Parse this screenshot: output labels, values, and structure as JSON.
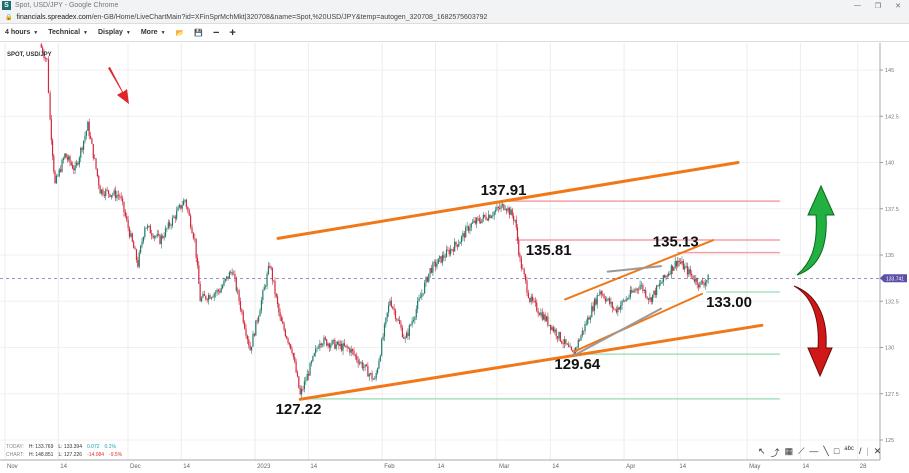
{
  "window": {
    "title": "Spot, USD/JPY - Google Chrome",
    "logo": "S",
    "url_domain": "financials.spreadex.com",
    "url_path": "/en-GB/Home/LiveChartMain?id=XFinSprMchMkt|320708&name=Spot,%20USD/JPY&temp=autogen_320708_1682575603792"
  },
  "toolbar": {
    "interval": "4 hours",
    "technical": "Technical",
    "display": "Display",
    "more": "More"
  },
  "symbol": "SPOT, USD/JPY",
  "current_price": "133.741",
  "stats": {
    "today_label": "TODAY:",
    "today_high": "H: 133.769",
    "today_low": "L: 133.394",
    "today_change": "0.072",
    "today_pct": "0.1%",
    "chart_label": "CHART:",
    "chart_high": "H: 148.851",
    "chart_low": "L: 127.226",
    "chart_change": "-14.084",
    "chart_pct": "-9.5%"
  },
  "colors": {
    "up": "#1f7a6a",
    "down": "#d0283c",
    "trend": "#f07818",
    "resistance": "#f4a0a8",
    "support": "#a8e0c0",
    "price_tag": "#5b50a8"
  },
  "chart_data": {
    "type": "candlestick",
    "ylim": [
      124.5,
      146.5
    ],
    "y_ticks": [
      "145",
      "142.5",
      "140",
      "137.5",
      "135",
      "132.5",
      "130",
      "127.5",
      "125"
    ],
    "x_ticks": [
      {
        "day": 0,
        "label": "Nov"
      },
      {
        "day": 13,
        "label": "14"
      },
      {
        "day": 30,
        "label": "Dec"
      },
      {
        "day": 43,
        "label": "14"
      },
      {
        "day": 61,
        "label": "2023"
      },
      {
        "day": 74,
        "label": "14"
      },
      {
        "day": 92,
        "label": "Feb"
      },
      {
        "day": 105,
        "label": "14"
      },
      {
        "day": 120,
        "label": "Mar"
      },
      {
        "day": 133,
        "label": "14"
      },
      {
        "day": 151,
        "label": "Apr"
      },
      {
        "day": 164,
        "label": "14"
      },
      {
        "day": 181,
        "label": "May"
      },
      {
        "day": 194,
        "label": "14"
      },
      {
        "day": 208,
        "label": "28"
      }
    ],
    "path": [
      [
        8.5,
        146.4
      ],
      [
        10.2,
        145.5
      ],
      [
        11,
        142.3
      ],
      [
        12.2,
        138.8
      ],
      [
        14.6,
        140.4
      ],
      [
        17.1,
        139.6
      ],
      [
        20.2,
        142.0
      ],
      [
        23.2,
        138.5
      ],
      [
        28,
        138.2
      ],
      [
        32.4,
        134.5
      ],
      [
        34.1,
        136.6
      ],
      [
        37.8,
        135.8
      ],
      [
        43.9,
        138.0
      ],
      [
        46.3,
        135.8
      ],
      [
        47.6,
        132.6
      ],
      [
        52.4,
        133.1
      ],
      [
        55.4,
        134.2
      ],
      [
        59.8,
        129.9
      ],
      [
        64.6,
        134.5
      ],
      [
        67.1,
        131.5
      ],
      [
        70,
        129.9
      ],
      [
        72,
        127.4
      ],
      [
        76.8,
        130.4
      ],
      [
        84.1,
        129.9
      ],
      [
        90.2,
        128.2
      ],
      [
        93.9,
        132.6
      ],
      [
        97.6,
        130.4
      ],
      [
        103.7,
        134.2
      ],
      [
        111,
        135.8
      ],
      [
        113.4,
        136.6
      ],
      [
        118.3,
        137.2
      ],
      [
        122,
        137.7
      ],
      [
        124.4,
        136.9
      ],
      [
        125.6,
        134.7
      ],
      [
        128,
        132.6
      ],
      [
        134.1,
        130.9
      ],
      [
        138.5,
        129.6
      ],
      [
        145.1,
        133.1
      ],
      [
        148.8,
        132.0
      ],
      [
        154.9,
        133.4
      ],
      [
        157.3,
        132.6
      ],
      [
        162.2,
        134.2
      ],
      [
        164.1,
        134.7
      ],
      [
        169.5,
        133.4
      ],
      [
        171.5,
        133.7
      ]
    ],
    "trendlines": [
      {
        "name": "upper-channel",
        "from": [
          66.6,
          135.9
        ],
        "to": [
          178.8,
          140.0
        ],
        "color": "#f07818",
        "w": 3
      },
      {
        "name": "lower-channel",
        "from": [
          72,
          127.2
        ],
        "to": [
          184.6,
          131.2
        ],
        "color": "#f07818",
        "w": 3
      },
      {
        "name": "inner-upper",
        "from": [
          136.6,
          132.6
        ],
        "to": [
          172.7,
          135.8
        ],
        "color": "#f07818",
        "w": 2
      },
      {
        "name": "inner-lower",
        "from": [
          139,
          129.8
        ],
        "to": [
          170,
          132.9
        ],
        "color": "#f07818",
        "w": 2
      },
      {
        "name": "wedge-top",
        "from": [
          147,
          134.1
        ],
        "to": [
          160,
          134.4
        ],
        "color": "#999999",
        "w": 2
      },
      {
        "name": "wedge-bottom",
        "from": [
          139,
          129.6
        ],
        "to": [
          160,
          132.1
        ],
        "color": "#999999",
        "w": 2
      }
    ],
    "levels": [
      {
        "value": 137.91,
        "label": "137.91",
        "from_day": 122,
        "kind": "resistance",
        "label_day": 116,
        "label_above": true
      },
      {
        "value": 135.81,
        "label": "135.81",
        "from_day": 124.5,
        "kind": "resistance",
        "label_day": 127,
        "label_above": false
      },
      {
        "value": 135.13,
        "label": "135.13",
        "from_day": 164,
        "kind": "resistance",
        "label_day": 158,
        "label_above": true
      },
      {
        "value": 133.0,
        "label": "133.00",
        "from_day": 171,
        "kind": "support",
        "label_day": 171,
        "label_above": false
      },
      {
        "value": 129.64,
        "label": "129.64",
        "from_day": 138.5,
        "kind": "support",
        "label_day": 134,
        "label_above": false
      },
      {
        "value": 127.22,
        "label": "127.22",
        "from_day": 72,
        "kind": "support",
        "label_day": 66,
        "label_above": false
      }
    ],
    "levels_end_day": 189
  }
}
